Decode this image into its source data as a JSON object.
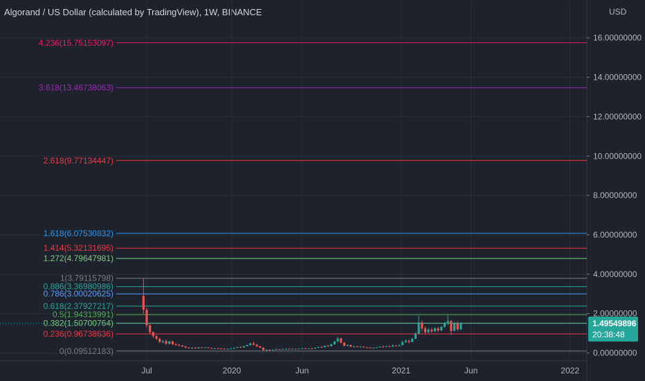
{
  "title": "Algorand / US Dollar (calculated by TradingView), 1W, BINANCE",
  "chart_data": {
    "type": "candlestick",
    "y_unit": "USD",
    "ylim": [
      -0.3,
      16.8
    ],
    "y_ticks": [
      {
        "value": 0,
        "label": "0.00000000"
      },
      {
        "value": 2,
        "label": "2.00000000"
      },
      {
        "value": 4,
        "label": "4.00000000"
      },
      {
        "value": 6,
        "label": "6.00000000"
      },
      {
        "value": 8,
        "label": "8.00000000"
      },
      {
        "value": 10,
        "label": "10.00000000"
      },
      {
        "value": 12,
        "label": "12.00000000"
      },
      {
        "value": 14,
        "label": "14.00000000"
      },
      {
        "value": 16,
        "label": "16.00000000"
      }
    ],
    "x_ticks": [
      {
        "date": "2019-07-01",
        "label": "Jul"
      },
      {
        "date": "2020-01-01",
        "label": "2020"
      },
      {
        "date": "2020-06-01",
        "label": "Jun"
      },
      {
        "date": "2021-01-01",
        "label": "2021"
      },
      {
        "date": "2021-06-01",
        "label": "Jun"
      },
      {
        "date": "2022-01-01",
        "label": "2022"
      }
    ],
    "fib_levels": [
      {
        "label": "4.236(15.75153097)",
        "value": 15.75153097,
        "color": "#e91e63"
      },
      {
        "label": "3.618(13.46738063)",
        "value": 13.46738063,
        "color": "#9c27b0"
      },
      {
        "label": "2.618(9.77134447)",
        "value": 9.77134447,
        "color": "#f23645"
      },
      {
        "label": "1.618(6.07530832)",
        "value": 6.07530832,
        "color": "#2196f3"
      },
      {
        "label": "1.414(5.32131695)",
        "value": 5.32131695,
        "color": "#f23645"
      },
      {
        "label": "1.272(4.79647981)",
        "value": 4.79647981,
        "color": "#81c784"
      },
      {
        "label": "1(3.79115798)",
        "value": 3.79115798,
        "color": "#787b86"
      },
      {
        "label": "0.886(3.36980986)",
        "value": 3.36980986,
        "color": "#26a69a"
      },
      {
        "label": "0.786(3.00020625)",
        "value": 3.00020625,
        "color": "#5b9cf6"
      },
      {
        "label": "0.618(2.37927217)",
        "value": 2.37927217,
        "color": "#26a69a"
      },
      {
        "label": "0.5(1.94313991)",
        "value": 1.94313991,
        "color": "#4caf50"
      },
      {
        "label": "0.382(1.50700764)",
        "value": 1.50700764,
        "color": "#81c784"
      },
      {
        "label": "0.236(0.96738636)",
        "value": 0.96738636,
        "color": "#f23645"
      },
      {
        "label": "0(0.09512183)",
        "value": 0.09512183,
        "color": "#787b86"
      }
    ],
    "last_price": {
      "value": 1.49549896,
      "label": "1.49549896",
      "countdown": "20:38:48",
      "color": "#26a69a"
    },
    "candles": [
      {
        "date": "2019-06-24",
        "o": 2.9,
        "h": 3.8,
        "l": 2.0,
        "c": 2.2
      },
      {
        "date": "2019-07-01",
        "o": 2.2,
        "h": 2.3,
        "l": 1.3,
        "c": 1.4
      },
      {
        "date": "2019-07-08",
        "o": 1.4,
        "h": 1.5,
        "l": 0.95,
        "c": 1.05
      },
      {
        "date": "2019-07-15",
        "o": 1.05,
        "h": 1.1,
        "l": 0.75,
        "c": 0.85
      },
      {
        "date": "2019-07-22",
        "o": 0.85,
        "h": 0.92,
        "l": 0.65,
        "c": 0.72
      },
      {
        "date": "2019-07-29",
        "o": 0.72,
        "h": 0.78,
        "l": 0.5,
        "c": 0.56
      },
      {
        "date": "2019-08-05",
        "o": 0.56,
        "h": 0.65,
        "l": 0.48,
        "c": 0.6
      },
      {
        "date": "2019-08-12",
        "o": 0.6,
        "h": 0.68,
        "l": 0.42,
        "c": 0.47
      },
      {
        "date": "2019-08-19",
        "o": 0.47,
        "h": 0.62,
        "l": 0.44,
        "c": 0.58
      },
      {
        "date": "2019-08-26",
        "o": 0.58,
        "h": 0.63,
        "l": 0.4,
        "c": 0.44
      },
      {
        "date": "2019-09-02",
        "o": 0.44,
        "h": 0.5,
        "l": 0.36,
        "c": 0.4
      },
      {
        "date": "2019-09-09",
        "o": 0.4,
        "h": 0.46,
        "l": 0.34,
        "c": 0.37
      },
      {
        "date": "2019-09-16",
        "o": 0.37,
        "h": 0.42,
        "l": 0.3,
        "c": 0.33
      },
      {
        "date": "2019-09-23",
        "o": 0.33,
        "h": 0.36,
        "l": 0.25,
        "c": 0.27
      },
      {
        "date": "2019-09-30",
        "o": 0.27,
        "h": 0.3,
        "l": 0.22,
        "c": 0.24
      },
      {
        "date": "2019-10-07",
        "o": 0.24,
        "h": 0.29,
        "l": 0.21,
        "c": 0.27
      },
      {
        "date": "2019-10-14",
        "o": 0.27,
        "h": 0.29,
        "l": 0.22,
        "c": 0.23
      },
      {
        "date": "2019-10-21",
        "o": 0.23,
        "h": 0.3,
        "l": 0.22,
        "c": 0.28
      },
      {
        "date": "2019-10-28",
        "o": 0.28,
        "h": 0.31,
        "l": 0.24,
        "c": 0.25
      },
      {
        "date": "2019-11-04",
        "o": 0.25,
        "h": 0.3,
        "l": 0.24,
        "c": 0.28
      },
      {
        "date": "2019-11-11",
        "o": 0.28,
        "h": 0.3,
        "l": 0.24,
        "c": 0.25
      },
      {
        "date": "2019-11-18",
        "o": 0.25,
        "h": 0.27,
        "l": 0.2,
        "c": 0.22
      },
      {
        "date": "2019-11-25",
        "o": 0.22,
        "h": 0.25,
        "l": 0.2,
        "c": 0.23
      },
      {
        "date": "2019-12-02",
        "o": 0.23,
        "h": 0.25,
        "l": 0.21,
        "c": 0.22
      },
      {
        "date": "2019-12-09",
        "o": 0.22,
        "h": 0.24,
        "l": 0.2,
        "c": 0.21
      },
      {
        "date": "2019-12-16",
        "o": 0.21,
        "h": 0.23,
        "l": 0.17,
        "c": 0.19
      },
      {
        "date": "2019-12-23",
        "o": 0.19,
        "h": 0.23,
        "l": 0.18,
        "c": 0.21
      },
      {
        "date": "2019-12-30",
        "o": 0.21,
        "h": 0.24,
        "l": 0.2,
        "c": 0.22
      },
      {
        "date": "2020-01-06",
        "o": 0.22,
        "h": 0.28,
        "l": 0.21,
        "c": 0.26
      },
      {
        "date": "2020-01-13",
        "o": 0.26,
        "h": 0.32,
        "l": 0.25,
        "c": 0.3
      },
      {
        "date": "2020-01-20",
        "o": 0.3,
        "h": 0.33,
        "l": 0.26,
        "c": 0.28
      },
      {
        "date": "2020-01-27",
        "o": 0.28,
        "h": 0.36,
        "l": 0.27,
        "c": 0.34
      },
      {
        "date": "2020-02-03",
        "o": 0.34,
        "h": 0.42,
        "l": 0.33,
        "c": 0.4
      },
      {
        "date": "2020-02-10",
        "o": 0.4,
        "h": 0.52,
        "l": 0.38,
        "c": 0.48
      },
      {
        "date": "2020-02-17",
        "o": 0.48,
        "h": 0.58,
        "l": 0.38,
        "c": 0.42
      },
      {
        "date": "2020-02-24",
        "o": 0.42,
        "h": 0.46,
        "l": 0.3,
        "c": 0.34
      },
      {
        "date": "2020-03-02",
        "o": 0.34,
        "h": 0.36,
        "l": 0.25,
        "c": 0.27
      },
      {
        "date": "2020-03-09",
        "o": 0.27,
        "h": 0.29,
        "l": 0.1,
        "c": 0.15
      },
      {
        "date": "2020-03-16",
        "o": 0.15,
        "h": 0.18,
        "l": 0.12,
        "c": 0.16
      },
      {
        "date": "2020-03-23",
        "o": 0.16,
        "h": 0.18,
        "l": 0.14,
        "c": 0.15
      },
      {
        "date": "2020-03-30",
        "o": 0.15,
        "h": 0.18,
        "l": 0.14,
        "c": 0.17
      },
      {
        "date": "2020-04-06",
        "o": 0.17,
        "h": 0.21,
        "l": 0.16,
        "c": 0.19
      },
      {
        "date": "2020-04-13",
        "o": 0.19,
        "h": 0.2,
        "l": 0.17,
        "c": 0.18
      },
      {
        "date": "2020-04-20",
        "o": 0.18,
        "h": 0.22,
        "l": 0.17,
        "c": 0.2
      },
      {
        "date": "2020-04-27",
        "o": 0.2,
        "h": 0.23,
        "l": 0.19,
        "c": 0.21
      },
      {
        "date": "2020-05-04",
        "o": 0.21,
        "h": 0.23,
        "l": 0.19,
        "c": 0.2
      },
      {
        "date": "2020-05-11",
        "o": 0.2,
        "h": 0.22,
        "l": 0.19,
        "c": 0.21
      },
      {
        "date": "2020-05-18",
        "o": 0.21,
        "h": 0.22,
        "l": 0.19,
        "c": 0.2
      },
      {
        "date": "2020-05-25",
        "o": 0.2,
        "h": 0.23,
        "l": 0.19,
        "c": 0.22
      },
      {
        "date": "2020-06-01",
        "o": 0.22,
        "h": 0.25,
        "l": 0.21,
        "c": 0.23
      },
      {
        "date": "2020-06-08",
        "o": 0.23,
        "h": 0.25,
        "l": 0.2,
        "c": 0.21
      },
      {
        "date": "2020-06-15",
        "o": 0.21,
        "h": 0.24,
        "l": 0.2,
        "c": 0.23
      },
      {
        "date": "2020-06-22",
        "o": 0.23,
        "h": 0.25,
        "l": 0.21,
        "c": 0.22
      },
      {
        "date": "2020-06-29",
        "o": 0.22,
        "h": 0.28,
        "l": 0.21,
        "c": 0.26
      },
      {
        "date": "2020-07-06",
        "o": 0.26,
        "h": 0.32,
        "l": 0.25,
        "c": 0.3
      },
      {
        "date": "2020-07-13",
        "o": 0.3,
        "h": 0.34,
        "l": 0.27,
        "c": 0.29
      },
      {
        "date": "2020-07-20",
        "o": 0.29,
        "h": 0.38,
        "l": 0.28,
        "c": 0.36
      },
      {
        "date": "2020-07-27",
        "o": 0.36,
        "h": 0.42,
        "l": 0.32,
        "c": 0.34
      },
      {
        "date": "2020-08-03",
        "o": 0.34,
        "h": 0.48,
        "l": 0.33,
        "c": 0.44
      },
      {
        "date": "2020-08-10",
        "o": 0.44,
        "h": 0.62,
        "l": 0.42,
        "c": 0.58
      },
      {
        "date": "2020-08-17",
        "o": 0.58,
        "h": 0.8,
        "l": 0.55,
        "c": 0.74
      },
      {
        "date": "2020-08-24",
        "o": 0.74,
        "h": 0.78,
        "l": 0.48,
        "c": 0.52
      },
      {
        "date": "2020-08-31",
        "o": 0.52,
        "h": 0.56,
        "l": 0.33,
        "c": 0.37
      },
      {
        "date": "2020-09-07",
        "o": 0.37,
        "h": 0.44,
        "l": 0.34,
        "c": 0.4
      },
      {
        "date": "2020-09-14",
        "o": 0.4,
        "h": 0.42,
        "l": 0.3,
        "c": 0.32
      },
      {
        "date": "2020-09-21",
        "o": 0.32,
        "h": 0.36,
        "l": 0.28,
        "c": 0.34
      },
      {
        "date": "2020-09-28",
        "o": 0.34,
        "h": 0.35,
        "l": 0.28,
        "c": 0.3
      },
      {
        "date": "2020-10-05",
        "o": 0.3,
        "h": 0.34,
        "l": 0.28,
        "c": 0.32
      },
      {
        "date": "2020-10-12",
        "o": 0.32,
        "h": 0.33,
        "l": 0.27,
        "c": 0.28
      },
      {
        "date": "2020-10-19",
        "o": 0.28,
        "h": 0.31,
        "l": 0.25,
        "c": 0.27
      },
      {
        "date": "2020-10-26",
        "o": 0.27,
        "h": 0.29,
        "l": 0.23,
        "c": 0.25
      },
      {
        "date": "2020-11-02",
        "o": 0.25,
        "h": 0.28,
        "l": 0.23,
        "c": 0.26
      },
      {
        "date": "2020-11-09",
        "o": 0.26,
        "h": 0.3,
        "l": 0.25,
        "c": 0.28
      },
      {
        "date": "2020-11-16",
        "o": 0.28,
        "h": 0.34,
        "l": 0.27,
        "c": 0.32
      },
      {
        "date": "2020-11-23",
        "o": 0.32,
        "h": 0.37,
        "l": 0.28,
        "c": 0.3
      },
      {
        "date": "2020-11-30",
        "o": 0.3,
        "h": 0.36,
        "l": 0.29,
        "c": 0.34
      },
      {
        "date": "2020-12-07",
        "o": 0.34,
        "h": 0.36,
        "l": 0.3,
        "c": 0.32
      },
      {
        "date": "2020-12-14",
        "o": 0.32,
        "h": 0.42,
        "l": 0.31,
        "c": 0.38
      },
      {
        "date": "2020-12-21",
        "o": 0.38,
        "h": 0.4,
        "l": 0.32,
        "c": 0.35
      },
      {
        "date": "2020-12-28",
        "o": 0.35,
        "h": 0.42,
        "l": 0.34,
        "c": 0.4
      },
      {
        "date": "2021-01-04",
        "o": 0.4,
        "h": 0.62,
        "l": 0.38,
        "c": 0.55
      },
      {
        "date": "2021-01-11",
        "o": 0.55,
        "h": 0.7,
        "l": 0.52,
        "c": 0.62
      },
      {
        "date": "2021-01-18",
        "o": 0.62,
        "h": 0.68,
        "l": 0.48,
        "c": 0.56
      },
      {
        "date": "2021-01-25",
        "o": 0.56,
        "h": 0.78,
        "l": 0.54,
        "c": 0.72
      },
      {
        "date": "2021-02-01",
        "o": 0.72,
        "h": 1.05,
        "l": 0.7,
        "c": 0.98
      },
      {
        "date": "2021-02-08",
        "o": 0.98,
        "h": 1.9,
        "l": 0.96,
        "c": 1.55
      },
      {
        "date": "2021-02-15",
        "o": 1.55,
        "h": 1.65,
        "l": 1.1,
        "c": 1.25
      },
      {
        "date": "2021-02-22",
        "o": 1.25,
        "h": 1.35,
        "l": 0.95,
        "c": 1.05
      },
      {
        "date": "2021-03-01",
        "o": 1.05,
        "h": 1.28,
        "l": 1.0,
        "c": 1.18
      },
      {
        "date": "2021-03-08",
        "o": 1.18,
        "h": 1.28,
        "l": 1.02,
        "c": 1.1
      },
      {
        "date": "2021-03-15",
        "o": 1.1,
        "h": 1.3,
        "l": 1.06,
        "c": 1.25
      },
      {
        "date": "2021-03-22",
        "o": 1.25,
        "h": 1.32,
        "l": 1.05,
        "c": 1.14
      },
      {
        "date": "2021-03-29",
        "o": 1.14,
        "h": 1.38,
        "l": 1.1,
        "c": 1.32
      },
      {
        "date": "2021-04-05",
        "o": 1.32,
        "h": 1.58,
        "l": 1.28,
        "c": 1.52
      },
      {
        "date": "2021-04-12",
        "o": 1.52,
        "h": 1.9,
        "l": 1.4,
        "c": 1.62
      },
      {
        "date": "2021-04-19",
        "o": 1.62,
        "h": 1.68,
        "l": 0.92,
        "c": 1.12
      },
      {
        "date": "2021-04-26",
        "o": 1.12,
        "h": 1.58,
        "l": 1.1,
        "c": 1.5
      },
      {
        "date": "2021-05-03",
        "o": 1.5,
        "h": 1.62,
        "l": 1.1,
        "c": 1.2
      },
      {
        "date": "2021-05-10",
        "o": 1.2,
        "h": 1.58,
        "l": 1.15,
        "c": 1.5
      }
    ]
  }
}
